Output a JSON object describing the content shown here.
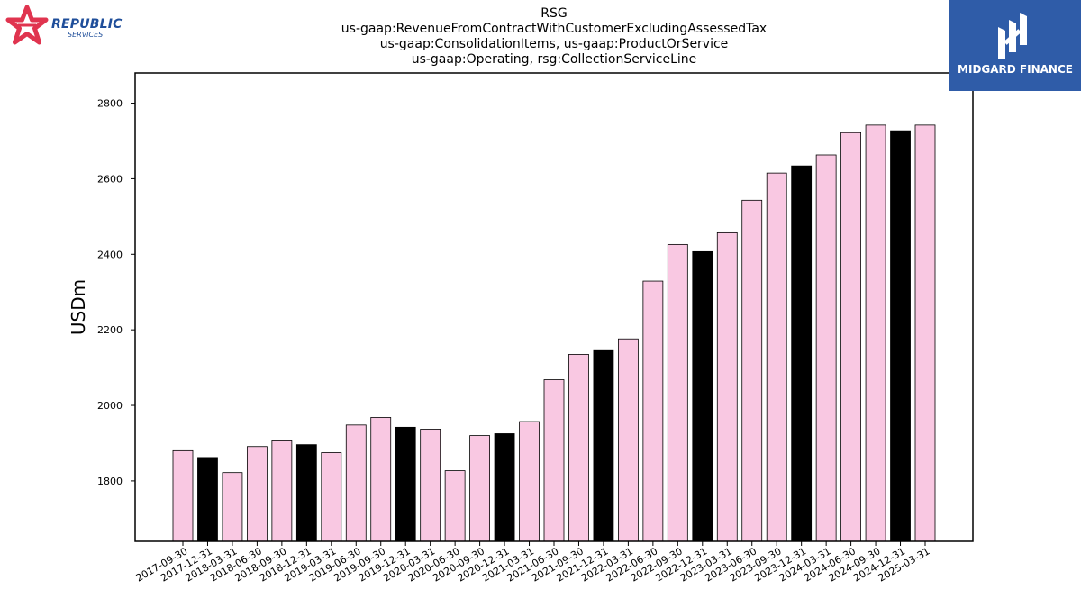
{
  "titles": {
    "line1": "RSG",
    "line2": "us-gaap:RevenueFromContractWithCustomerExcludingAssessedTax",
    "line3": "us-gaap:ConsolidationItems, us-gaap:ProductOrService",
    "line4": "us-gaap:Operating, rsg:CollectionServiceLine"
  },
  "logos": {
    "left_brand": "REPUBLIC",
    "left_sub": "SERVICES",
    "right_name": "MIDGARD FINANCE"
  },
  "colors": {
    "quarter_bar": "#f9c8e2",
    "year_end_bar": "#000000",
    "logo_red": "#e0344f",
    "logo_blue": "#2f5ca8"
  },
  "chart_data": {
    "type": "bar",
    "title": "",
    "xlabel": "",
    "ylabel": "USDm",
    "ylim": [
      1640,
      2880
    ],
    "yticks": [
      1800,
      2000,
      2200,
      2400,
      2600,
      2800
    ],
    "grid": false,
    "categories": [
      "2017-09-30",
      "2017-12-31",
      "2018-03-31",
      "2018-06-30",
      "2018-09-30",
      "2018-12-31",
      "2019-03-31",
      "2019-06-30",
      "2019-09-30",
      "2019-12-31",
      "2020-03-31",
      "2020-06-30",
      "2020-09-30",
      "2020-12-31",
      "2021-03-31",
      "2021-06-30",
      "2021-09-30",
      "2021-12-31",
      "2022-03-31",
      "2022-06-30",
      "2022-09-30",
      "2022-12-31",
      "2023-03-31",
      "2023-06-30",
      "2023-09-30",
      "2023-12-31",
      "2024-03-31",
      "2024-06-30",
      "2024-09-30",
      "2024-12-31",
      "2025-03-31"
    ],
    "values": [
      1880,
      1862,
      1822,
      1891,
      1906,
      1896,
      1875,
      1948,
      1968,
      1942,
      1937,
      1827,
      1920,
      1925,
      1957,
      2068,
      2135,
      2145,
      2176,
      2329,
      2426,
      2407,
      2457,
      2543,
      2615,
      2634,
      2663,
      2722,
      2742,
      2727,
      2742
    ],
    "year_end_highlight": [
      false,
      true,
      false,
      false,
      false,
      true,
      false,
      false,
      false,
      true,
      false,
      false,
      false,
      true,
      false,
      false,
      false,
      true,
      false,
      false,
      false,
      true,
      false,
      false,
      false,
      true,
      false,
      false,
      false,
      true,
      false
    ]
  }
}
